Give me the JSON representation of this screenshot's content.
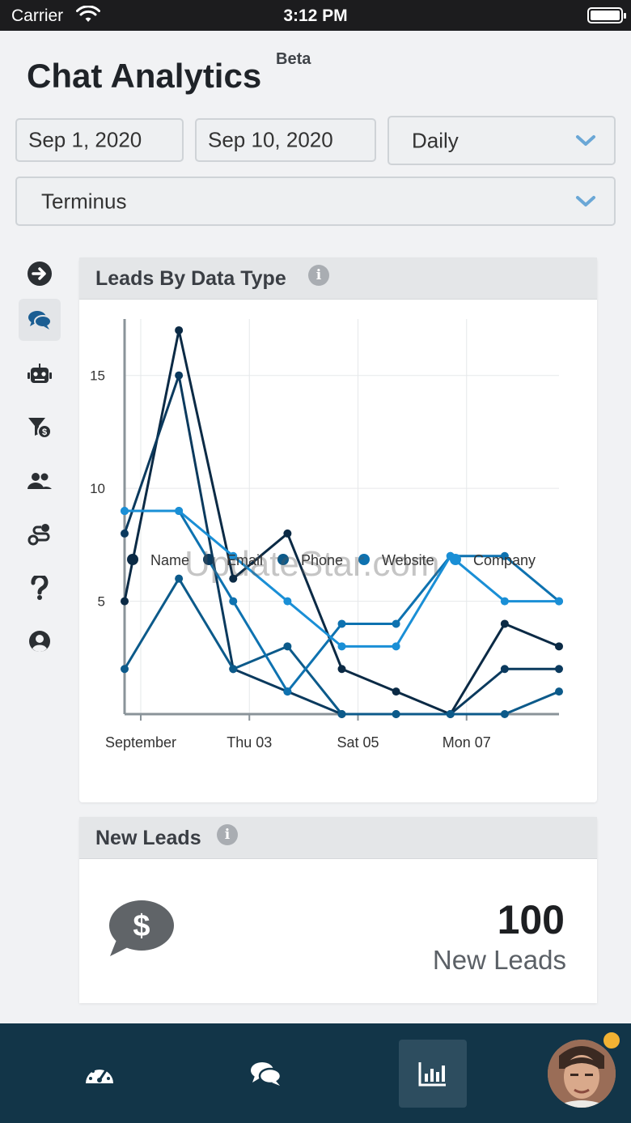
{
  "status_bar": {
    "carrier": "Carrier",
    "time": "3:12 PM"
  },
  "header": {
    "title": "Chat Analytics",
    "badge": "Beta"
  },
  "filters": {
    "start_date": "Sep 1, 2020",
    "end_date": "Sep 10, 2020",
    "interval": "Daily",
    "account": "Terminus"
  },
  "sidebar": {
    "items": [
      {
        "icon": "arrow-right-circle-icon",
        "active": false
      },
      {
        "icon": "chat-bubbles-icon",
        "active": true
      },
      {
        "icon": "robot-icon",
        "active": false
      },
      {
        "icon": "funnel-dollar-icon",
        "active": false
      },
      {
        "icon": "users-icon",
        "active": false
      },
      {
        "icon": "route-icon",
        "active": false
      },
      {
        "icon": "question-icon",
        "active": false
      },
      {
        "icon": "user-circle-icon",
        "active": false
      }
    ]
  },
  "leads_by_type_card": {
    "title": "Leads By Data Type"
  },
  "chart_data": {
    "type": "line",
    "x": [
      1,
      2,
      3,
      4,
      5,
      6,
      7,
      8,
      9
    ],
    "x_tick_labels": [
      {
        "x": 1,
        "label": "September"
      },
      {
        "x": 3,
        "label": "Thu 03"
      },
      {
        "x": 5,
        "label": "Sat 05"
      },
      {
        "x": 7,
        "label": "Mon 07"
      }
    ],
    "ylim": [
      0,
      17.5
    ],
    "yticks": [
      5,
      10,
      15
    ],
    "grid": true,
    "legend_position": "bottom",
    "series": [
      {
        "name": "Name",
        "color": "#0b2a45",
        "values": [
          5,
          17,
          6,
          8,
          2,
          1,
          0,
          4,
          3
        ]
      },
      {
        "name": "Email",
        "color": "#0b3a5e",
        "values": [
          8,
          15,
          2,
          1,
          0,
          0,
          0,
          2,
          2
        ]
      },
      {
        "name": "Phone",
        "color": "#0c5a8a",
        "values": [
          2,
          6,
          2,
          3,
          0,
          0,
          0,
          0,
          1
        ]
      },
      {
        "name": "Website",
        "color": "#0e72b0",
        "values": [
          9,
          9,
          5,
          1,
          4,
          4,
          7,
          7,
          5
        ]
      },
      {
        "name": "Company",
        "color": "#1a8fd6",
        "values": [
          9,
          9,
          7,
          5,
          3,
          3,
          7,
          5,
          5
        ]
      }
    ]
  },
  "new_leads_card": {
    "title": "New Leads",
    "count": "100",
    "label": "New Leads"
  },
  "watermark": "UpdateStar.com",
  "bottom_nav": {
    "items": [
      {
        "icon": "dashboard-gauge-icon",
        "active": false
      },
      {
        "icon": "chat-bubbles-icon",
        "active": false
      },
      {
        "icon": "bar-chart-icon",
        "active": true
      }
    ]
  }
}
